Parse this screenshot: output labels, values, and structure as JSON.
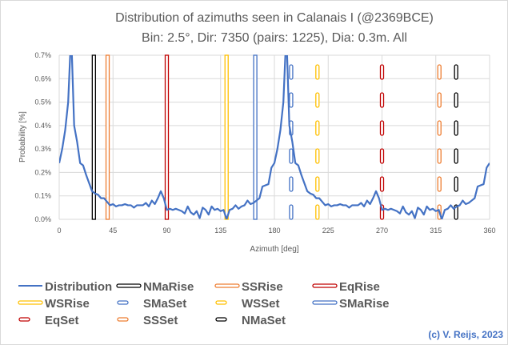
{
  "chart_data": {
    "type": "line",
    "title": "Distribution of azimuths seen in Calanais I (@2369BCE)",
    "subtitle": "Bin: 2.5°, Dir: 7350 (pairs: 1225), Dia: 0.3m. All",
    "xlabel": "Azimuth [deg]",
    "ylabel": "Probability [%]",
    "xlim": [
      0,
      360
    ],
    "ylim": [
      0,
      0.7
    ],
    "x_ticks": [
      "0",
      "45",
      "90",
      "135",
      "180",
      "225",
      "270",
      "315",
      "360"
    ],
    "y_ticks": [
      "0.0%",
      "0.1%",
      "0.2%",
      "0.3%",
      "0.4%",
      "0.5%",
      "0.6%",
      "0.7%"
    ],
    "grid": true,
    "legend_position": "bottom",
    "x_step": 2.5,
    "series": [
      {
        "name": "Distribution",
        "color": "#4472C4",
        "values": [
          0.24,
          0.3,
          0.38,
          0.5,
          0.8,
          0.4,
          0.33,
          0.24,
          0.23,
          0.19,
          0.155,
          0.12,
          0.11,
          0.105,
          0.09,
          0.09,
          0.075,
          0.06,
          0.065,
          0.055,
          0.06,
          0.06,
          0.065,
          0.06,
          0.06,
          0.05,
          0.06,
          0.06,
          0.06,
          0.07,
          0.055,
          0.08,
          0.065,
          0.09,
          0.12,
          0.09,
          0.04,
          0.045,
          0.04,
          0.045,
          0.04,
          0.035,
          0.025,
          0.055,
          0.03,
          0.02,
          0.035,
          0.005,
          0.05,
          0.04,
          0.02,
          0.055,
          0.04,
          0.045,
          0.035,
          0.04,
          0.0,
          0.04,
          0.045,
          0.06,
          0.045,
          0.055,
          0.06,
          0.08,
          0.065,
          0.07,
          0.08,
          0.09,
          0.14,
          0.145,
          0.15,
          0.22,
          0.24,
          0.3,
          0.38,
          0.5,
          0.8,
          0.4,
          0.33,
          0.24,
          0.23,
          0.19,
          0.155,
          0.12,
          0.11,
          0.105,
          0.09,
          0.09,
          0.075,
          0.06,
          0.065,
          0.055,
          0.06,
          0.06,
          0.065,
          0.06,
          0.06,
          0.05,
          0.06,
          0.06,
          0.06,
          0.07,
          0.055,
          0.08,
          0.065,
          0.09,
          0.12,
          0.09,
          0.04,
          0.045,
          0.04,
          0.045,
          0.04,
          0.035,
          0.025,
          0.055,
          0.03,
          0.02,
          0.035,
          0.005,
          0.05,
          0.04,
          0.02,
          0.055,
          0.04,
          0.045,
          0.035,
          0.04,
          0.0,
          0.04,
          0.045,
          0.06,
          0.045,
          0.055,
          0.06,
          0.08,
          0.065,
          0.07,
          0.08,
          0.09,
          0.14,
          0.145,
          0.15,
          0.22,
          0.24
        ]
      }
    ],
    "markers": [
      {
        "name": "NMaRise",
        "azimuth": 29,
        "color": "#000000",
        "style": "solid"
      },
      {
        "name": "SSRise",
        "azimuth": 40.5,
        "color": "#ED7D31",
        "style": "solid"
      },
      {
        "name": "EqRise",
        "azimuth": 90,
        "color": "#C00000",
        "style": "solid"
      },
      {
        "name": "WSRise",
        "azimuth": 140,
        "color": "#FFC000",
        "style": "solid"
      },
      {
        "name": "SMaSet",
        "azimuth": 194,
        "color": "#4472C4",
        "style": "dashed"
      },
      {
        "name": "WSSet",
        "azimuth": 216,
        "color": "#FFC000",
        "style": "dashed"
      },
      {
        "name": "SMaRise",
        "azimuth": 164,
        "color": "#4472C4",
        "style": "solid"
      },
      {
        "name": "EqSet",
        "azimuth": 270,
        "color": "#C00000",
        "style": "dashed"
      },
      {
        "name": "SSSet",
        "azimuth": 318,
        "color": "#ED7D31",
        "style": "dashed"
      },
      {
        "name": "NMaSet",
        "azimuth": 332,
        "color": "#000000",
        "style": "dashed"
      }
    ]
  },
  "copyright": "(c) V. Reijs, 2023"
}
